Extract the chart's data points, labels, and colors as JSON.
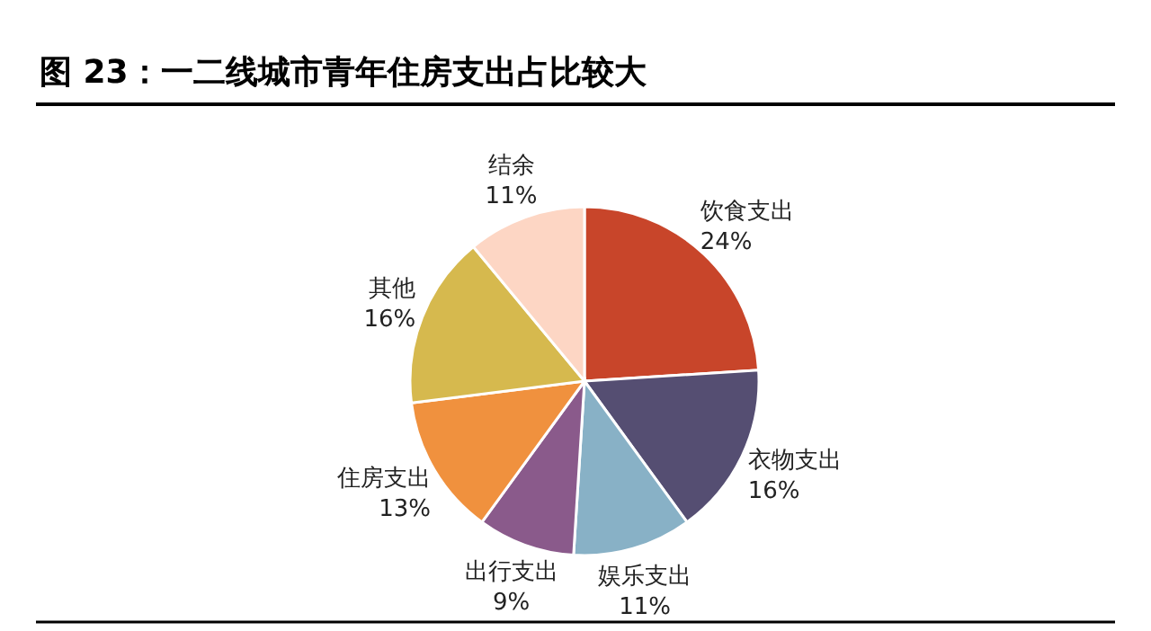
{
  "chart_data": {
    "type": "pie",
    "title": "图 23：一二线城市青年住房支出占比较大",
    "categories": [
      "饮食支出",
      "衣物支出",
      "娱乐支出",
      "出行支出",
      "住房支出",
      "其他",
      "结余"
    ],
    "values": [
      24,
      16,
      11,
      9,
      13,
      16,
      11
    ],
    "value_labels": [
      "24%",
      "16%",
      "11%",
      "9%",
      "13%",
      "16%",
      "11%"
    ],
    "colors": [
      "#c8452a",
      "#554e72",
      "#88b1c6",
      "#8a5a8b",
      "#f0913e",
      "#d6b94e",
      "#fdd6c4"
    ],
    "legend": false
  }
}
